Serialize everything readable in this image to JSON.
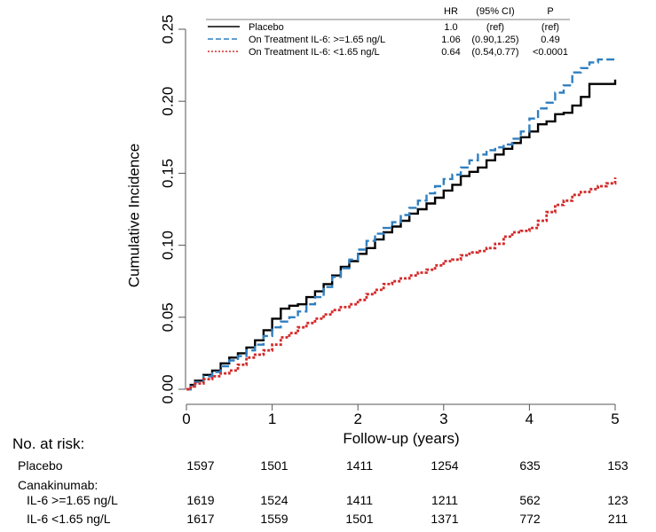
{
  "chart_data": {
    "type": "line",
    "xlabel": "Follow-up (years)",
    "ylabel": "Cumulative Incidence",
    "xlim": [
      0,
      5
    ],
    "ylim": [
      0,
      0.25
    ],
    "x_ticks": [
      "0",
      "1",
      "2",
      "3",
      "4",
      "5"
    ],
    "y_ticks": [
      "0.00",
      "0.05",
      "0.10",
      "0.15",
      "0.20",
      "0.25"
    ],
    "grid": false,
    "legend_position": "top-right",
    "legend_headers": {
      "hr": "HR",
      "ci": "(95% CI)",
      "p": "P"
    },
    "series": [
      {
        "name": "Placebo",
        "color": "#000000",
        "style": "solid",
        "hr": "1.0",
        "ci": "(ref)",
        "p": "(ref)",
        "x": [
          0,
          0.05,
          0.1,
          0.2,
          0.3,
          0.4,
          0.5,
          0.6,
          0.7,
          0.8,
          0.9,
          1.0,
          1.1,
          1.2,
          1.3,
          1.4,
          1.5,
          1.6,
          1.7,
          1.8,
          1.9,
          2.0,
          2.1,
          2.2,
          2.3,
          2.4,
          2.5,
          2.6,
          2.7,
          2.8,
          2.9,
          3.0,
          3.1,
          3.2,
          3.3,
          3.4,
          3.5,
          3.6,
          3.7,
          3.8,
          3.9,
          4.0,
          4.1,
          4.2,
          4.3,
          4.4,
          4.5,
          4.6,
          4.7,
          4.8,
          4.9,
          4.97,
          5.0
        ],
        "y": [
          0,
          0.003,
          0.006,
          0.01,
          0.013,
          0.018,
          0.022,
          0.025,
          0.029,
          0.034,
          0.041,
          0.049,
          0.056,
          0.058,
          0.059,
          0.064,
          0.068,
          0.073,
          0.079,
          0.085,
          0.089,
          0.094,
          0.098,
          0.104,
          0.109,
          0.113,
          0.117,
          0.122,
          0.125,
          0.129,
          0.133,
          0.138,
          0.142,
          0.148,
          0.151,
          0.154,
          0.159,
          0.163,
          0.167,
          0.171,
          0.175,
          0.179,
          0.184,
          0.186,
          0.191,
          0.192,
          0.197,
          0.203,
          0.212,
          0.212,
          0.212,
          0.212,
          0.215
        ]
      },
      {
        "name": "On Treatment IL-6: >=1.65 ng/L",
        "color": "#2f7fc0",
        "style": "dashed",
        "hr": "1.06",
        "ci": "(0.90,1.25)",
        "p": "0.49",
        "x": [
          0,
          0.05,
          0.1,
          0.2,
          0.3,
          0.4,
          0.5,
          0.6,
          0.7,
          0.8,
          0.9,
          1.0,
          1.1,
          1.2,
          1.3,
          1.4,
          1.5,
          1.6,
          1.7,
          1.8,
          1.9,
          2.0,
          2.1,
          2.2,
          2.3,
          2.4,
          2.5,
          2.6,
          2.7,
          2.8,
          2.9,
          3.0,
          3.1,
          3.2,
          3.3,
          3.4,
          3.5,
          3.6,
          3.7,
          3.8,
          3.9,
          4.0,
          4.1,
          4.2,
          4.3,
          4.4,
          4.5,
          4.6,
          4.7,
          4.8,
          4.9,
          5.0
        ],
        "y": [
          0,
          0.003,
          0.005,
          0.009,
          0.012,
          0.016,
          0.02,
          0.023,
          0.027,
          0.031,
          0.037,
          0.043,
          0.047,
          0.05,
          0.054,
          0.059,
          0.064,
          0.071,
          0.078,
          0.084,
          0.09,
          0.097,
          0.103,
          0.108,
          0.112,
          0.116,
          0.121,
          0.126,
          0.131,
          0.136,
          0.141,
          0.146,
          0.149,
          0.154,
          0.159,
          0.163,
          0.166,
          0.168,
          0.17,
          0.174,
          0.179,
          0.188,
          0.195,
          0.199,
          0.206,
          0.211,
          0.22,
          0.223,
          0.227,
          0.229,
          0.229,
          0.229
        ]
      },
      {
        "name": "On Treatment IL-6: <1.65 ng/L",
        "color": "#d42a2a",
        "style": "dotted",
        "hr": "0.64",
        "ci": "(0.54,0.77)",
        "p": "<0.0001",
        "x": [
          0,
          0.05,
          0.1,
          0.2,
          0.3,
          0.4,
          0.5,
          0.6,
          0.7,
          0.8,
          0.9,
          1.0,
          1.1,
          1.2,
          1.3,
          1.4,
          1.5,
          1.6,
          1.7,
          1.8,
          1.9,
          2.0,
          2.1,
          2.2,
          2.3,
          2.4,
          2.5,
          2.6,
          2.7,
          2.8,
          2.9,
          3.0,
          3.1,
          3.2,
          3.3,
          3.4,
          3.5,
          3.6,
          3.7,
          3.8,
          3.9,
          4.0,
          4.1,
          4.2,
          4.3,
          4.4,
          4.5,
          4.6,
          4.7,
          4.8,
          4.9,
          5.0
        ],
        "y": [
          0,
          0.002,
          0.004,
          0.007,
          0.009,
          0.011,
          0.013,
          0.017,
          0.022,
          0.024,
          0.027,
          0.031,
          0.036,
          0.039,
          0.043,
          0.046,
          0.049,
          0.052,
          0.055,
          0.057,
          0.059,
          0.062,
          0.066,
          0.069,
          0.073,
          0.075,
          0.077,
          0.079,
          0.081,
          0.083,
          0.086,
          0.089,
          0.09,
          0.093,
          0.095,
          0.096,
          0.098,
          0.101,
          0.106,
          0.109,
          0.11,
          0.112,
          0.117,
          0.123,
          0.128,
          0.131,
          0.135,
          0.137,
          0.139,
          0.141,
          0.143,
          0.147
        ]
      }
    ]
  },
  "risk_table": {
    "title": "No. at risk:",
    "group_label": "Canakinumab:",
    "rows": [
      {
        "label": "Placebo",
        "values": [
          "1597",
          "1501",
          "1411",
          "1254",
          "635",
          "153"
        ]
      },
      {
        "label": "IL-6 >=1.65 ng/L",
        "values": [
          "1619",
          "1524",
          "1411",
          "1211",
          "562",
          "123"
        ]
      },
      {
        "label": "IL-6 <1.65 ng/L",
        "values": [
          "1617",
          "1559",
          "1501",
          "1371",
          "772",
          "211"
        ]
      }
    ]
  }
}
